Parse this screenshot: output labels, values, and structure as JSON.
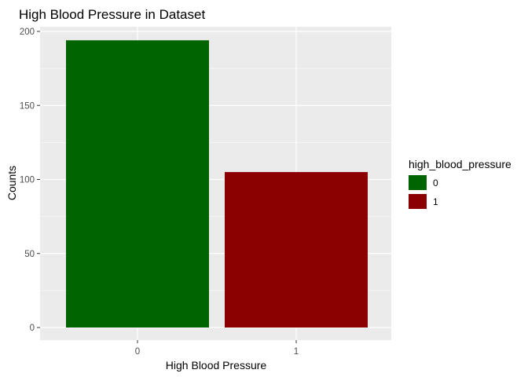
{
  "chart_data": {
    "type": "bar",
    "title": "High Blood Pressure in Dataset",
    "xlabel": "High Blood Pressure",
    "ylabel": "Counts",
    "categories": [
      "0",
      "1"
    ],
    "values": [
      194,
      105
    ],
    "ylim": [
      0,
      205
    ],
    "yticks": [
      0,
      50,
      100,
      150,
      200
    ],
    "grid": true,
    "legend": {
      "title": "high_blood_pressure",
      "placement": "right",
      "entries": [
        {
          "label": "0",
          "color": "#006400"
        },
        {
          "label": "1",
          "color": "#8B0000"
        }
      ]
    },
    "colors": [
      "#006400",
      "#8B0000"
    ],
    "panel_background": "#EBEBEB",
    "grid_color": "#FFFFFF"
  }
}
